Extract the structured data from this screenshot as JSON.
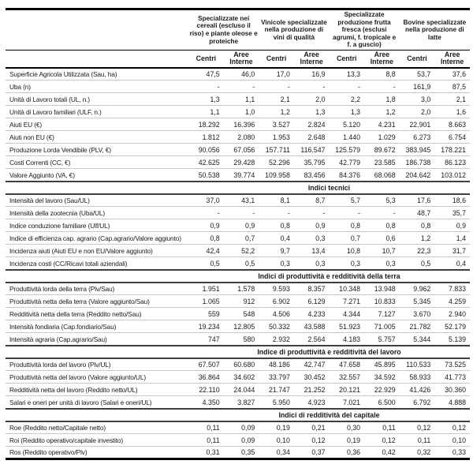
{
  "table": {
    "column_groups": [
      {
        "label": "Specializzate nei cereali (escluso il riso) e piante oleose e proteiche"
      },
      {
        "label": "Vinicole specializzate nella produzione di vini di qualità"
      },
      {
        "label": "Specializzate produzione frutta fresca (esclusi agrumi, f. tropicale e f. a guscio)"
      },
      {
        "label": "Bovine specializzate nella produzione di latte"
      }
    ],
    "subheaders": [
      "Centri",
      "Aree Interne"
    ],
    "sections": [
      {
        "title": null,
        "rows": [
          {
            "label": "Superficie Agricola Utilizzata (Sau, ha)",
            "values": [
              "47,5",
              "46,0",
              "17,0",
              "16,9",
              "13,3",
              "8,8",
              "53,7",
              "37,6"
            ]
          },
          {
            "label": "Uba (n)",
            "values": [
              "-",
              "-",
              "-",
              "-",
              "-",
              "-",
              "161,9",
              "87,5"
            ]
          },
          {
            "label": "Unità di Lavoro totali (UL, n.)",
            "values": [
              "1,3",
              "1,1",
              "2,1",
              "2,0",
              "2,2",
              "1,8",
              "3,0",
              "2,1"
            ]
          },
          {
            "label": "Unità di Lavoro familiari (ULF, n.)",
            "values": [
              "1,1",
              "1,0",
              "1,2",
              "1,3",
              "1,3",
              "1,2",
              "2,0",
              "1,6"
            ]
          },
          {
            "label": "Aiuti EU (€)",
            "values": [
              "18.292",
              "16.396",
              "3.527",
              "2.824",
              "5.120",
              "4.231",
              "22.901",
              "8.663"
            ]
          },
          {
            "label": "Aiuti non EU (€)",
            "values": [
              "1.812",
              "2.080",
              "1.953",
              "2.648",
              "1.440",
              "1.029",
              "6.273",
              "6.754"
            ]
          },
          {
            "label": "Produzione Lorda Vendibile (PLV, €)",
            "values": [
              "90.056",
              "67.056",
              "157.711",
              "116.547",
              "125.579",
              "89.672",
              "383.945",
              "178.221"
            ]
          },
          {
            "label": "Costi Correnti (CC, €)",
            "values": [
              "42.625",
              "29.428",
              "52.296",
              "35.795",
              "42.779",
              "23.585",
              "186.738",
              "86.123"
            ]
          },
          {
            "label": "Valore Aggiunto (VA, €)",
            "values": [
              "50.538",
              "39.774",
              "109.958",
              "83.456",
              "84.376",
              "68.068",
              "204.642",
              "103.012"
            ]
          }
        ]
      },
      {
        "title": "Indici tecnici",
        "rows": [
          {
            "label": "Intensità del lavoro (Sau/UL)",
            "values": [
              "37,0",
              "43,1",
              "8,1",
              "8,7",
              "5,7",
              "5,3",
              "17,6",
              "18,6"
            ]
          },
          {
            "label": "Intensità della zootecnia (Uba/UL)",
            "values": [
              "-",
              "-",
              "-",
              "-",
              "-",
              "-",
              "48,7",
              "35,7"
            ]
          },
          {
            "label": "Indice conduzione familiare (Ulf/UL)",
            "values": [
              "0,9",
              "0,9",
              "0,8",
              "0,9",
              "0,8",
              "0,8",
              "0,8",
              "0,9"
            ]
          },
          {
            "label": "Indice di efficienza cap. agrario (Cap.agrario/Valore aggiunto)",
            "values": [
              "0,8",
              "0,7",
              "0,4",
              "0,3",
              "0,7",
              "0,6",
              "1,2",
              "1,4"
            ]
          },
          {
            "label": "Incidenza aiuti (Aiuti EU e non EU/Valore aggiunto)",
            "values": [
              "42,4",
              "52,2",
              "9,7",
              "13,4",
              "10,8",
              "10,7",
              "22,3",
              "31,7"
            ]
          },
          {
            "label": "Incidenza costi (CC/Ricavi totali aziendali)",
            "values": [
              "0,5",
              "0,5",
              "0,3",
              "0,3",
              "0,3",
              "0,3",
              "0,5",
              "0,4"
            ]
          }
        ]
      },
      {
        "title": "Indici di produttività e redditività della terra",
        "rows": [
          {
            "label": "Produttività lorda della terra (Plv/Sau)",
            "values": [
              "1.951",
              "1.578",
              "9.593",
              "8.357",
              "10.348",
              "13.948",
              "9.962",
              "7.833"
            ]
          },
          {
            "label": "Produttività netta della terra (Valore aggiunto/Sau)",
            "values": [
              "1.065",
              "912",
              "6.902",
              "6.129",
              "7.271",
              "10.833",
              "5.345",
              "4.259"
            ]
          },
          {
            "label": "Redditività netta della terra (Reddito netto/Sau)",
            "values": [
              "559",
              "548",
              "4.506",
              "4.233",
              "4.344",
              "7.127",
              "3.670",
              "2.940"
            ]
          },
          {
            "label": "Intensità fondiaria (Cap.fondiario/Sau)",
            "values": [
              "19.234",
              "12.805",
              "50.332",
              "43.588",
              "51.923",
              "71.005",
              "21.782",
              "52.179"
            ]
          },
          {
            "label": "Intensità agraria (Cap.agrario/Sau)",
            "values": [
              "747",
              "580",
              "2.932",
              "2.564",
              "4.183",
              "5.757",
              "5.344",
              "5.139"
            ]
          }
        ]
      },
      {
        "title": "Indice di produttività e redditività del lavoro",
        "rows": [
          {
            "label": "Produttività lorda del lavoro (Plv/UL)",
            "values": [
              "67.507",
              "60.680",
              "48.186",
              "42.747",
              "47.658",
              "45.895",
              "110.533",
              "73.525"
            ]
          },
          {
            "label": "Produttività netta del lavoro (Valore aggiunto/UL)",
            "values": [
              "36.864",
              "34.602",
              "33.797",
              "30.452",
              "32.557",
              "34.592",
              "58.933",
              "41.773"
            ]
          },
          {
            "label": "Redditività netta del lavoro (Reddito netto/UL)",
            "values": [
              "22.110",
              "24.044",
              "21.747",
              "21.252",
              "20.121",
              "22.929",
              "41.426",
              "30.360"
            ]
          },
          {
            "label": "Salari e oneri per unità di lavoro (Salari e oneri/UL)",
            "values": [
              "4.350",
              "3.827",
              "5.950",
              "4.923",
              "7.021",
              "6.500",
              "6.792",
              "4.888"
            ]
          }
        ]
      },
      {
        "title": "Indici di redditività del capitale",
        "rows": [
          {
            "label": "Roe (Reddito netto/Capitale netto)",
            "values": [
              "0,11",
              "0,09",
              "0,19",
              "0,21",
              "0,30",
              "0,11",
              "0,12",
              "0,12"
            ]
          },
          {
            "label": "Roi (Reddito operativo/capitale investito)",
            "values": [
              "0,11",
              "0,09",
              "0,10",
              "0,12",
              "0,19",
              "0,12",
              "0,11",
              "0,10"
            ]
          },
          {
            "label": "Ros (Reddito operativo/Plv)",
            "values": [
              "0,31",
              "0,35",
              "0,34",
              "0,37",
              "0,36",
              "0,42",
              "0,32",
              "0,33"
            ]
          }
        ]
      }
    ]
  },
  "colors": {
    "background": "#ffffff",
    "text": "#1a1a1a",
    "heavy_rule": "#000000",
    "section_rule": "#3f3f3f",
    "row_rule": "#c9c9c9"
  }
}
